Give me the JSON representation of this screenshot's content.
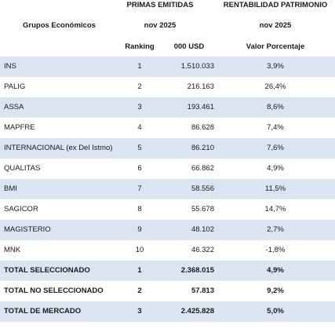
{
  "header": {
    "primas_title": "PRIMAS EMITIDAS",
    "primas_period": "nov 2025",
    "rent_title": "RENTABILIDAD PATRIMONIO",
    "rent_period": "nov 2025",
    "group_label": "Grupos Económicos",
    "ranking_label": "Ranking",
    "usd_label": "000 USD",
    "valor_label": "Valor Porcentaje"
  },
  "rows": [
    {
      "name": "INS",
      "ranking": "1",
      "primas": "1.510.033",
      "rent": "3,9%"
    },
    {
      "name": "PALIG",
      "ranking": "2",
      "primas": "216.163",
      "rent": "26,4%"
    },
    {
      "name": "ASSA",
      "ranking": "3",
      "primas": "193.461",
      "rent": "8,6%"
    },
    {
      "name": "MAPFRE",
      "ranking": "4",
      "primas": "86.628",
      "rent": "7,4%"
    },
    {
      "name": "INTERNACIONAL (ex Del Istmo)",
      "ranking": "5",
      "primas": "86.210",
      "rent": "7,6%"
    },
    {
      "name": "QUALITAS",
      "ranking": "6",
      "primas": "66.862",
      "rent": "4,9%"
    },
    {
      "name": "BMI",
      "ranking": "7",
      "primas": "58.556",
      "rent": "11,5%"
    },
    {
      "name": "SAGICOR",
      "ranking": "8",
      "primas": "55.678",
      "rent": "14,7%"
    },
    {
      "name": "MAGISTERIO",
      "ranking": "9",
      "primas": "48.102",
      "rent": "2,7%"
    },
    {
      "name": "MNK",
      "ranking": "10",
      "primas": "46.322",
      "rent": "-1,8%"
    },
    {
      "name": "TOTAL SELECCIONADO",
      "ranking": "1",
      "primas": "2.368.015",
      "rent": "4,9%"
    },
    {
      "name": "TOTAL NO SELECCIONADO",
      "ranking": "2",
      "primas": "57.813",
      "rent": "9,2%"
    },
    {
      "name": "TOTAL DE MERCADO",
      "ranking": "3",
      "primas": "2.425.828",
      "rent": "5,0%"
    }
  ]
}
